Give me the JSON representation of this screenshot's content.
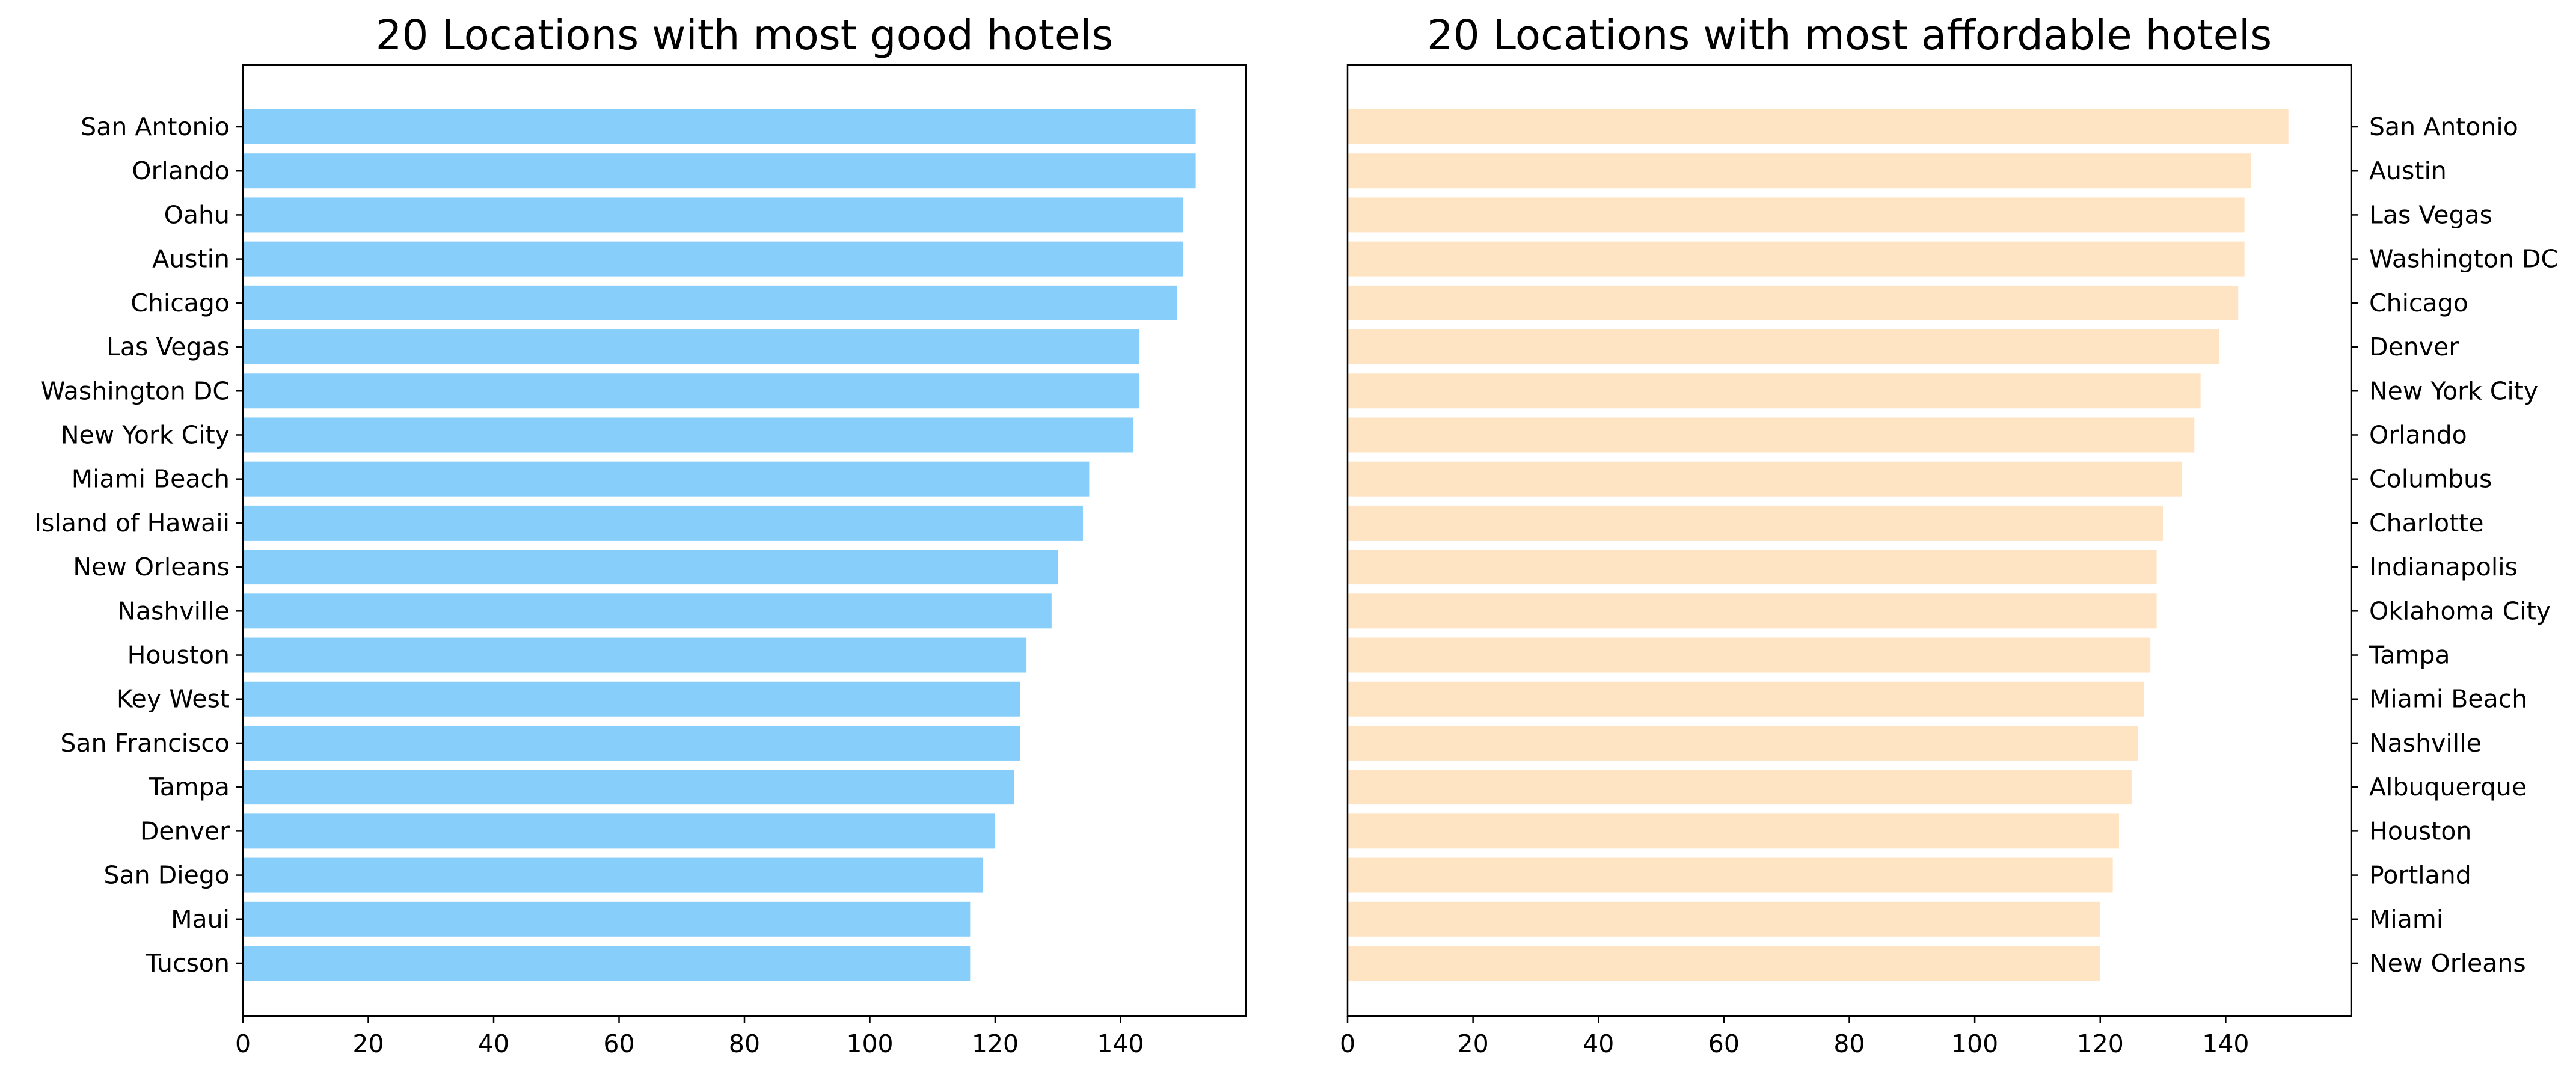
{
  "chart_data": [
    {
      "type": "bar",
      "orientation": "horizontal",
      "title": "20 Locations with most good hotels",
      "xlabel": "",
      "ylabel": "",
      "xlim": [
        0,
        160
      ],
      "xticks": [
        "0",
        "20",
        "40",
        "60",
        "80",
        "100",
        "120",
        "140"
      ],
      "categories": [
        "San Antonio",
        "Orlando",
        "Oahu",
        "Austin",
        "Chicago",
        "Las Vegas",
        "Washington DC",
        "New York City",
        "Miami Beach",
        "Island of Hawaii",
        "New Orleans",
        "Nashville",
        "Houston",
        "Key West",
        "San Francisco",
        "Tampa",
        "Denver",
        "San Diego",
        "Maui",
        "Tucson"
      ],
      "values": [
        152,
        152,
        150,
        150,
        149,
        143,
        143,
        142,
        135,
        134,
        130,
        129,
        125,
        124,
        124,
        123,
        120,
        118,
        116,
        116
      ],
      "bar_color": "#87CEFA",
      "label_side": "left",
      "grid": false
    },
    {
      "type": "bar",
      "orientation": "horizontal",
      "title": "20 Locations with most affordable hotels",
      "xlabel": "",
      "ylabel": "",
      "xlim": [
        0,
        160
      ],
      "xticks": [
        "0",
        "20",
        "40",
        "60",
        "80",
        "100",
        "120",
        "140"
      ],
      "categories": [
        "San Antonio",
        "Austin",
        "Las Vegas",
        "Washington DC",
        "Chicago",
        "Denver",
        "New York City",
        "Orlando",
        "Columbus",
        "Charlotte",
        "Indianapolis",
        "Oklahoma City",
        "Tampa",
        "Miami Beach",
        "Nashville",
        "Albuquerque",
        "Houston",
        "Portland",
        "Miami",
        "New Orleans"
      ],
      "values": [
        150,
        144,
        143,
        143,
        142,
        139,
        136,
        135,
        133,
        130,
        129,
        129,
        128,
        127,
        126,
        125,
        123,
        122,
        120,
        120
      ],
      "bar_color": "#FFE4C4",
      "label_side": "right",
      "grid": false
    }
  ]
}
